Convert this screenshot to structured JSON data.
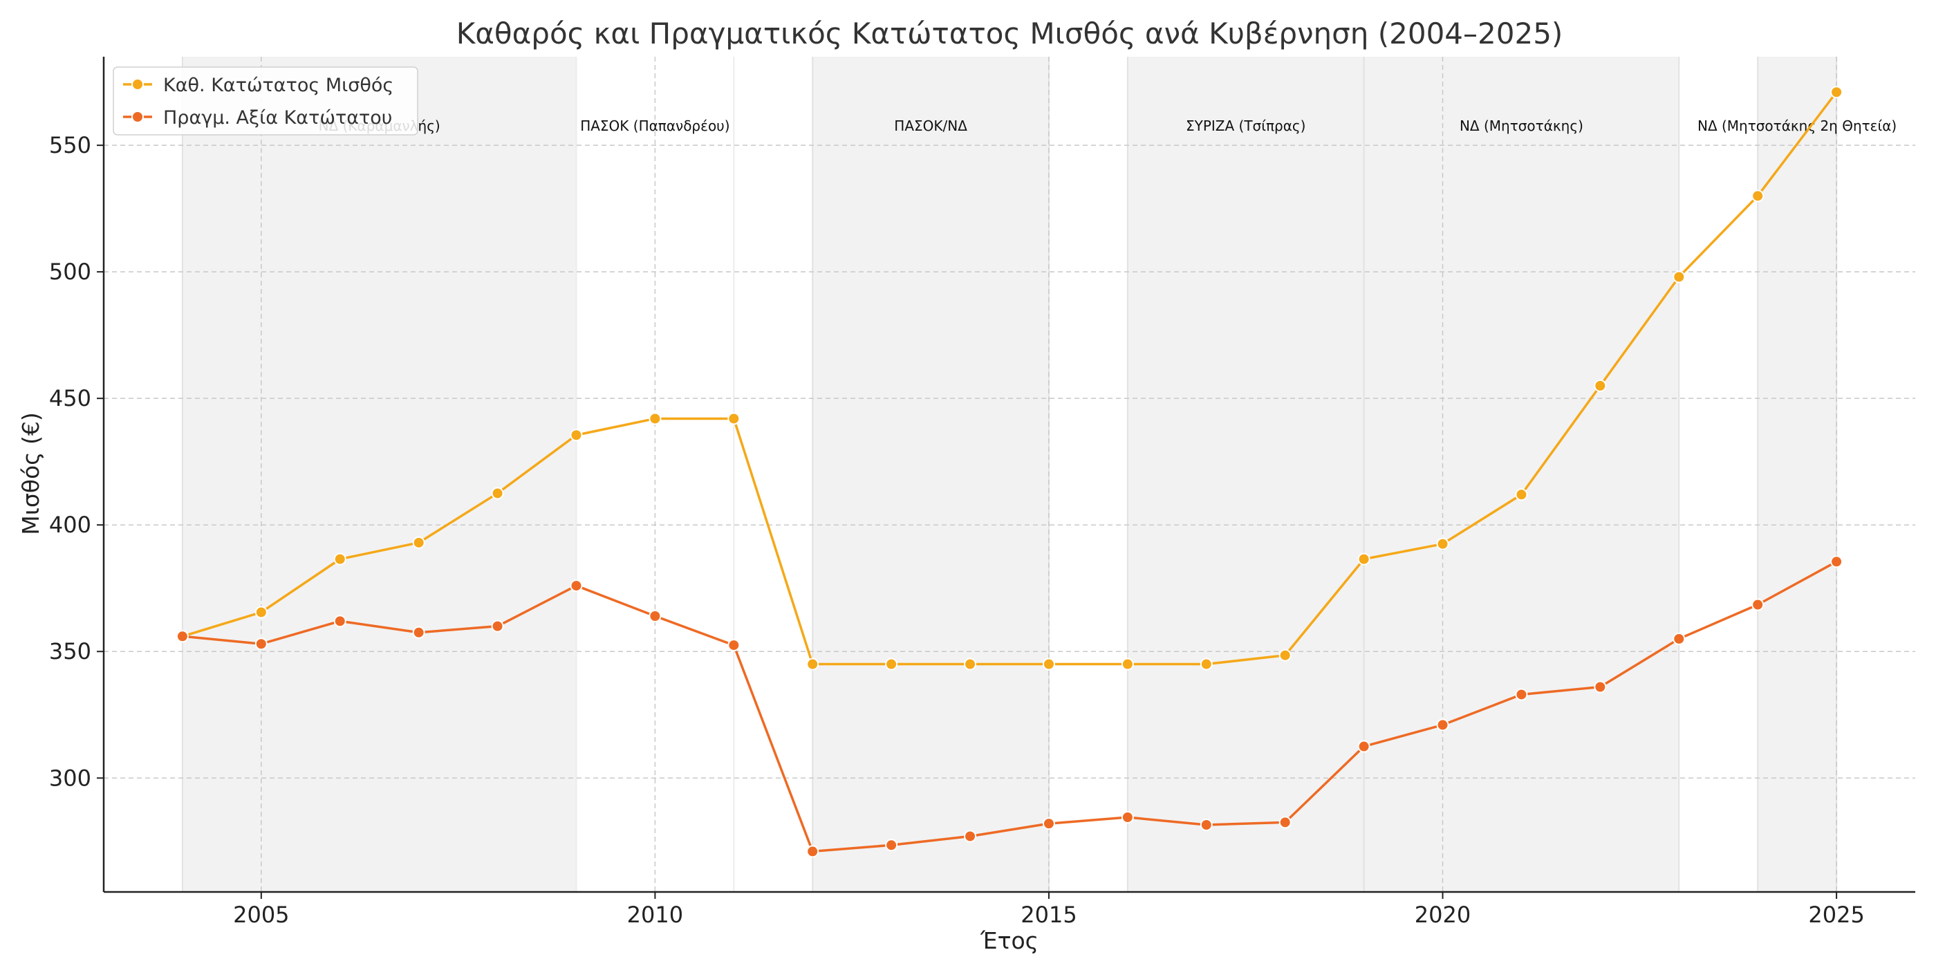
{
  "chart_data": {
    "type": "line",
    "title": "Καθαρός και Πραγματικός Κατώτατος Μισθός ανά Κυβέρνηση (2004–2025)",
    "xlabel": "Έτος",
    "ylabel": "Μισθός (€)",
    "xlim": [
      2003,
      2026
    ],
    "ylim": [
      255,
      585
    ],
    "x_ticks": [
      2005,
      2010,
      2015,
      2020,
      2025
    ],
    "y_ticks": [
      300,
      350,
      400,
      450,
      500,
      550
    ],
    "grid": true,
    "legend_position": "top-left",
    "x": [
      2004,
      2005,
      2006,
      2007,
      2008,
      2009,
      2010,
      2011,
      2012,
      2013,
      2014,
      2015,
      2016,
      2017,
      2018,
      2019,
      2020,
      2021,
      2022,
      2023,
      2024,
      2025
    ],
    "series": [
      {
        "name": "Καθ. Κατώτατος Μισθός",
        "color": "#F5A818",
        "values": [
          356,
          365.5,
          386.5,
          393,
          412.5,
          435.5,
          442,
          442,
          345,
          345,
          345,
          345,
          345,
          345,
          348.5,
          386.5,
          392.5,
          412,
          455,
          498,
          530,
          571
        ]
      },
      {
        "name": "Πραγμ. Αξία Κατώτατου",
        "color": "#EE6A24",
        "values": [
          356,
          353,
          362,
          357.5,
          360,
          376,
          364,
          352.5,
          271,
          273.5,
          277,
          282,
          284.5,
          281.5,
          282.5,
          312.5,
          321,
          333,
          336,
          355,
          368.5,
          385.5
        ]
      }
    ],
    "governments": [
      {
        "label": "ΝΔ (Καραμανλής)",
        "start": 2004,
        "end": 2009,
        "shaded": true
      },
      {
        "label": "ΠΑΣΟΚ (Παπανδρέου)",
        "start": 2009,
        "end": 2011,
        "shaded": false
      },
      {
        "label": "ΠΑΣΟΚ/ΝΔ",
        "start": 2012,
        "end": 2015,
        "shaded": true
      },
      {
        "label": "ΣΥΡΙΖΑ (Τσίπρας)",
        "start": 2016,
        "end": 2019,
        "shaded": true
      },
      {
        "label": "ΝΔ (Μητσοτάκης)",
        "start": 2019,
        "end": 2023,
        "shaded": true
      },
      {
        "label": "ΝΔ (Μητσοτάκης 2η Θητεία)",
        "start": 2024,
        "end": 2025,
        "shaded": true
      }
    ],
    "colors": {
      "band": "#f2f2f2",
      "grid": "#c8c8c8",
      "axis": "#222222"
    }
  }
}
